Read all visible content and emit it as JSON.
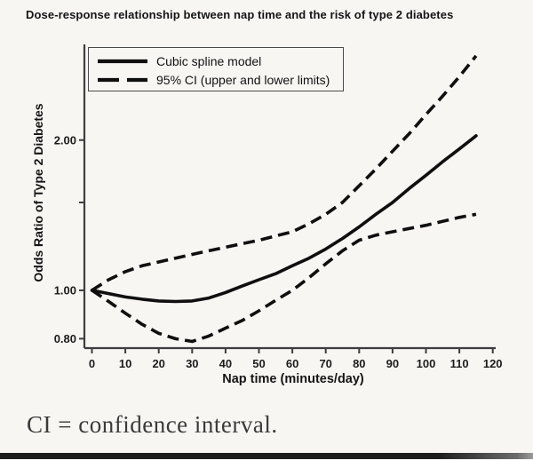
{
  "page": {
    "footnote": "CI = confidence interval."
  },
  "chart_data": {
    "type": "line",
    "title": "Dose-response relationship between nap time and the risk of type 2 diabetes",
    "xlabel": "Nap time (minutes/day)",
    "ylabel": "Odds Ratio of Type 2 Diabetes",
    "legend": [
      "Cubic spline model",
      "95% CI (upper and lower limits)"
    ],
    "legend_position": "top-left",
    "grid": false,
    "yscale": "log",
    "xlim": [
      0,
      120
    ],
    "ylim": [
      0.766,
      3.11
    ],
    "xticks": [
      0,
      10,
      20,
      30,
      40,
      50,
      60,
      70,
      80,
      90,
      100,
      110,
      120
    ],
    "yticks": [
      {
        "v": 0.8,
        "label": "0.80"
      },
      {
        "v": 1.0,
        "label": "1.00"
      },
      {
        "v": 1.5,
        "label": ""
      },
      {
        "v": 2.0,
        "label": "2.00"
      }
    ],
    "line_color": "#0f0f0f",
    "x": [
      0,
      5,
      10,
      15,
      20,
      25,
      30,
      35,
      40,
      45,
      50,
      55,
      60,
      65,
      70,
      75,
      80,
      85,
      90,
      95,
      100,
      105,
      110,
      115
    ],
    "series": [
      {
        "id": "spline",
        "name": "Cubic spline model",
        "style": "solid",
        "values": [
          1.0,
          0.985,
          0.97,
          0.96,
          0.952,
          0.95,
          0.952,
          0.965,
          0.99,
          1.02,
          1.05,
          1.08,
          1.12,
          1.16,
          1.21,
          1.27,
          1.34,
          1.42,
          1.5,
          1.6,
          1.7,
          1.81,
          1.92,
          2.04
        ]
      },
      {
        "id": "ci-upper",
        "name": "95% CI upper limit",
        "style": "dashed",
        "values": [
          1.0,
          1.05,
          1.09,
          1.12,
          1.14,
          1.16,
          1.18,
          1.2,
          1.22,
          1.24,
          1.26,
          1.285,
          1.31,
          1.36,
          1.42,
          1.5,
          1.62,
          1.75,
          1.9,
          2.06,
          2.25,
          2.45,
          2.68,
          2.95
        ]
      },
      {
        "id": "ci-lower",
        "name": "95% CI lower limit",
        "style": "dashed",
        "values": [
          1.0,
          0.95,
          0.9,
          0.855,
          0.82,
          0.8,
          0.79,
          0.81,
          0.84,
          0.87,
          0.91,
          0.955,
          1.0,
          1.06,
          1.13,
          1.2,
          1.26,
          1.29,
          1.31,
          1.33,
          1.35,
          1.375,
          1.4,
          1.42
        ]
      }
    ]
  }
}
